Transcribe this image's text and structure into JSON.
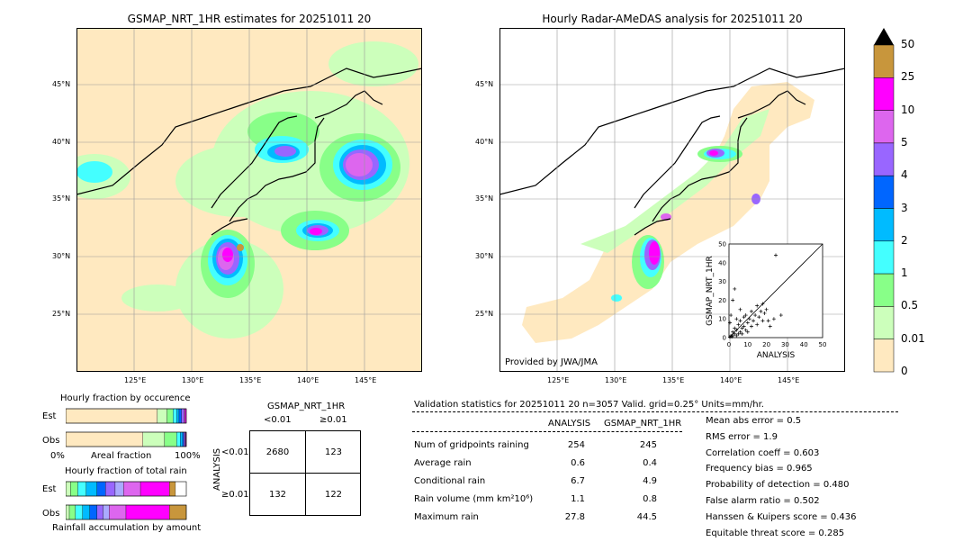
{
  "left_map": {
    "title": "GSMAP_NRT_1HR estimates for 20251011 20",
    "lat_labels": [
      "45°N",
      "40°N",
      "35°N",
      "30°N",
      "25°N"
    ],
    "lon_labels": [
      "125°E",
      "130°E",
      "135°E",
      "140°E",
      "145°E"
    ]
  },
  "right_map": {
    "title": "Hourly Radar-AMeDAS analysis for 20251011 20",
    "lat_labels": [
      "45°N",
      "40°N",
      "35°N",
      "30°N",
      "25°N"
    ],
    "lon_labels": [
      "125°E",
      "130°E",
      "135°E",
      "140°E",
      "145°E"
    ],
    "credit": "Provided by JWA/JMA"
  },
  "colorbar": {
    "labels": [
      "50",
      "25",
      "10",
      "5",
      "4",
      "3",
      "2",
      "1",
      "0.5",
      "0.01",
      "0"
    ],
    "colors": [
      "#c8963c",
      "#ff00ff",
      "#dd66ee",
      "#9966ff",
      "#0066ff",
      "#00bbff",
      "#44ffff",
      "#88ff88",
      "#ccffbb",
      "#ffe9c0"
    ],
    "extend_color": "#000000"
  },
  "chart_data": [
    {
      "type": "scatter",
      "name": "inset",
      "xlabel": "ANALYSIS",
      "ylabel": "GSMAP_NRT_1HR",
      "xlim": [
        0,
        50
      ],
      "ylim": [
        0,
        50
      ],
      "ticks": [
        "0",
        "10",
        "20",
        "30",
        "40",
        "50"
      ],
      "points": [
        [
          0.5,
          0.3
        ],
        [
          1,
          1
        ],
        [
          1.5,
          0.5
        ],
        [
          2,
          3
        ],
        [
          2,
          1
        ],
        [
          3,
          2
        ],
        [
          3,
          5
        ],
        [
          4,
          1
        ],
        [
          4,
          4
        ],
        [
          5,
          2
        ],
        [
          5,
          7
        ],
        [
          6,
          3
        ],
        [
          6,
          9
        ],
        [
          7,
          5
        ],
        [
          7,
          2
        ],
        [
          8,
          6
        ],
        [
          8,
          11
        ],
        [
          9,
          4
        ],
        [
          9,
          12
        ],
        [
          10,
          8
        ],
        [
          10,
          3
        ],
        [
          11,
          10
        ],
        [
          12,
          6
        ],
        [
          12,
          14
        ],
        [
          13,
          9
        ],
        [
          14,
          12
        ],
        [
          15,
          7
        ],
        [
          15,
          17
        ],
        [
          16,
          11
        ],
        [
          17,
          14
        ],
        [
          18,
          9
        ],
        [
          18,
          18
        ],
        [
          19,
          13
        ],
        [
          20,
          15
        ],
        [
          21,
          9
        ],
        [
          22,
          6
        ],
        [
          24,
          10
        ],
        [
          25,
          44
        ],
        [
          27.8,
          12
        ],
        [
          2,
          20
        ],
        [
          3,
          26
        ],
        [
          1,
          12
        ],
        [
          0.5,
          8
        ],
        [
          6,
          15
        ],
        [
          4,
          10
        ]
      ]
    },
    {
      "type": "bar",
      "name": "occurrence",
      "title": "Hourly fraction by occurence",
      "rows": [
        "Est",
        "Obs"
      ],
      "xlabels": [
        "0%",
        "Areal fraction",
        "100%"
      ],
      "segments": {
        "Est": [
          0.76,
          0.08,
          0.05,
          0.03,
          0.02,
          0.02,
          0.02,
          0.01,
          0.01
        ],
        "Obs": [
          0.64,
          0.18,
          0.1,
          0.03,
          0.02,
          0.01,
          0.01,
          0.005,
          0.005
        ]
      }
    },
    {
      "type": "bar",
      "name": "total",
      "title": "Hourly fraction of total rain",
      "rows": [
        "Est",
        "Obs"
      ],
      "xlabel": "Rainfall accumulation by amount",
      "segments": {
        "Est": [
          0.04,
          0.06,
          0.07,
          0.09,
          0.07,
          0.08,
          0.07,
          0.14,
          0.24,
          0.05
        ],
        "Obs": [
          0.03,
          0.05,
          0.06,
          0.06,
          0.06,
          0.05,
          0.05,
          0.14,
          0.36,
          0.14
        ]
      }
    },
    {
      "type": "table",
      "name": "contingency",
      "title": "GSMAP_NRT_1HR",
      "col_headers": [
        "<0.01",
        "≥0.01"
      ],
      "row_title": "ANALYSIS",
      "row_headers": [
        "<0.01",
        "≥0.01"
      ],
      "cells": [
        [
          "2680",
          "123"
        ],
        [
          "132",
          "122"
        ]
      ]
    }
  ],
  "stats": {
    "header": "Validation statistics for 20251011 20  n=3057 Valid. grid=0.25° Units=mm/hr.",
    "col_analysis": "ANALYSIS",
    "col_gsmap": "GSMAP_NRT_1HR",
    "rows": [
      {
        "label": "Num of gridpoints raining",
        "a": "254",
        "g": "245"
      },
      {
        "label": "Average rain",
        "a": "0.6",
        "g": "0.4"
      },
      {
        "label": "Conditional rain",
        "a": "6.7",
        "g": "4.9"
      },
      {
        "label": "Rain volume (mm km²10⁶)",
        "a": "1.1",
        "g": "0.8"
      },
      {
        "label": "Maximum rain",
        "a": "27.8",
        "g": "44.5"
      }
    ],
    "scores": [
      "Mean abs error =    0.5",
      "RMS error =    1.9",
      "Correlation coeff =  0.603",
      "Frequency bias =  0.965",
      "Probability of detection =  0.480",
      "False alarm ratio =  0.502",
      "Hanssen & Kuipers score =  0.436",
      "Equitable threat score =  0.285"
    ]
  }
}
